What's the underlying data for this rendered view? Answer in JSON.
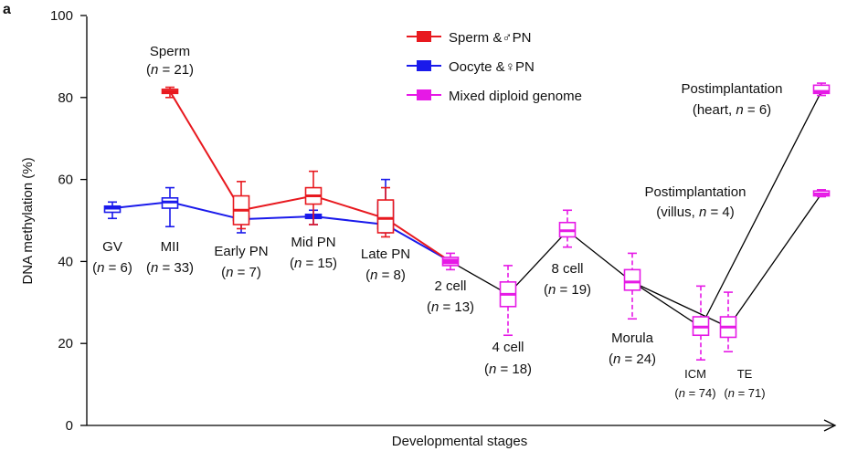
{
  "chart_data": {
    "type": "line",
    "panel_label": "a",
    "xlabel": "Developmental stages",
    "ylabel": "DNA methylation (%)",
    "ylim": [
      0,
      100
    ],
    "yticks": [
      0,
      20,
      40,
      60,
      80,
      100
    ],
    "legend_position": "top-center",
    "legend": [
      {
        "label": "Sperm &♂PN",
        "color": "#e8191f"
      },
      {
        "label": "Oocyte &♀PN",
        "color": "#1a1aeb"
      },
      {
        "label": "Mixed diploid genome",
        "color": "#e619e6"
      }
    ],
    "colors": {
      "sperm": "#e8191f",
      "oocyte": "#1a1aeb",
      "mixed": "#e619e6",
      "connector": "#000000"
    },
    "stages": [
      {
        "key": "GV",
        "label": "GV",
        "n": "(n = 6)"
      },
      {
        "key": "MII",
        "label": "MII",
        "n": "(n = 33)"
      },
      {
        "key": "EarlyPN",
        "label": "Early PN",
        "n": "(n = 7)"
      },
      {
        "key": "MidPN",
        "label": "Mid PN",
        "n": "(n = 15)"
      },
      {
        "key": "LatePN",
        "label": "Late PN",
        "n": "(n = 8)"
      },
      {
        "key": "2cell",
        "label": "2 cell",
        "n": "(n = 13)"
      },
      {
        "key": "4cell",
        "label": "4 cell",
        "n": "(n = 18)"
      },
      {
        "key": "8cell",
        "label": "8 cell",
        "n": "(n = 19)"
      },
      {
        "key": "Morula",
        "label": "Morula",
        "n": "(n = 24)"
      },
      {
        "key": "ICM",
        "label": "ICM",
        "n": "(n = 74)"
      },
      {
        "key": "TE",
        "label": "TE",
        "n": "(n = 71)"
      },
      {
        "key": "Postimplantation",
        "label": "",
        "n": ""
      }
    ],
    "annotations": {
      "sperm": {
        "label": "Sperm",
        "n": "(n = 21)"
      },
      "heart": {
        "label": "Postimplantation",
        "n": "(heart, n = 6)"
      },
      "villus": {
        "label": "Postimplantation",
        "n": "(villus, n = 4)"
      }
    },
    "series": [
      {
        "name": "Sperm &♂PN",
        "color": "#e8191f",
        "points": [
          {
            "stage": "MII",
            "median": 81.5,
            "q1": 81,
            "q3": 82,
            "lo": 80,
            "hi": 82.5
          },
          {
            "stage": "EarlyPN",
            "median": 52.5,
            "q1": 49,
            "q3": 56,
            "lo": 48,
            "hi": 59.5
          },
          {
            "stage": "MidPN",
            "median": 56,
            "q1": 54,
            "q3": 58,
            "lo": 49,
            "hi": 62
          },
          {
            "stage": "LatePN",
            "median": 50.5,
            "q1": 47,
            "q3": 55,
            "lo": 46,
            "hi": 58
          },
          {
            "stage": "2cell",
            "median": 40
          }
        ]
      },
      {
        "name": "Oocyte &♀PN",
        "color": "#1a1aeb",
        "points": [
          {
            "stage": "GV",
            "median": 53,
            "q1": 52,
            "q3": 53.5,
            "lo": 50.5,
            "hi": 54.5
          },
          {
            "stage": "MII",
            "median": 54.5,
            "q1": 53,
            "q3": 55.5,
            "lo": 48.5,
            "hi": 58
          },
          {
            "stage": "EarlyPN",
            "median": 50.3,
            "q1": 50,
            "q3": 51,
            "lo": 47,
            "hi": 52
          },
          {
            "stage": "MidPN",
            "median": 51,
            "q1": 50.5,
            "q3": 51.5,
            "lo": 49,
            "hi": 52.5
          },
          {
            "stage": "LatePN",
            "median": 49,
            "q1": 48,
            "q3": 54.5,
            "lo": 47,
            "hi": 60
          },
          {
            "stage": "2cell",
            "median": 40
          }
        ]
      },
      {
        "name": "Mixed diploid genome",
        "color": "#e619e6",
        "points": [
          {
            "stage": "2cell",
            "median": 40,
            "q1": 39,
            "q3": 41,
            "lo": 38,
            "hi": 42
          },
          {
            "stage": "4cell",
            "median": 32,
            "q1": 29,
            "q3": 35,
            "lo": 22,
            "hi": 39
          },
          {
            "stage": "8cell",
            "median": 47.5,
            "q1": 46,
            "q3": 49.5,
            "lo": 43.5,
            "hi": 52.5
          },
          {
            "stage": "Morula",
            "median": 35,
            "q1": 33,
            "q3": 38,
            "lo": 26,
            "hi": 42
          },
          {
            "stage": "ICM",
            "median": 24,
            "q1": 22,
            "q3": 26.5,
            "lo": 16,
            "hi": 34
          },
          {
            "stage": "TE",
            "median": 24,
            "q1": 21.5,
            "q3": 26.5,
            "lo": 18,
            "hi": 32.5
          },
          {
            "stage": "heart",
            "median": 81.5,
            "q1": 81,
            "q3": 83,
            "lo": 80.5,
            "hi": 83.5
          },
          {
            "stage": "villus",
            "median": 56.5,
            "q1": 56,
            "q3": 57.2,
            "lo": 55.8,
            "hi": 57.5
          }
        ]
      }
    ],
    "connectors": [
      {
        "from": "2cell",
        "to": "4cell"
      },
      {
        "from": "4cell",
        "to": "8cell"
      },
      {
        "from": "8cell",
        "to": "Morula"
      },
      {
        "from": "Morula",
        "to": "ICM"
      },
      {
        "from": "Morula",
        "to": "TE"
      },
      {
        "from": "ICM",
        "to": "heart"
      },
      {
        "from": "TE",
        "to": "villus"
      }
    ]
  }
}
